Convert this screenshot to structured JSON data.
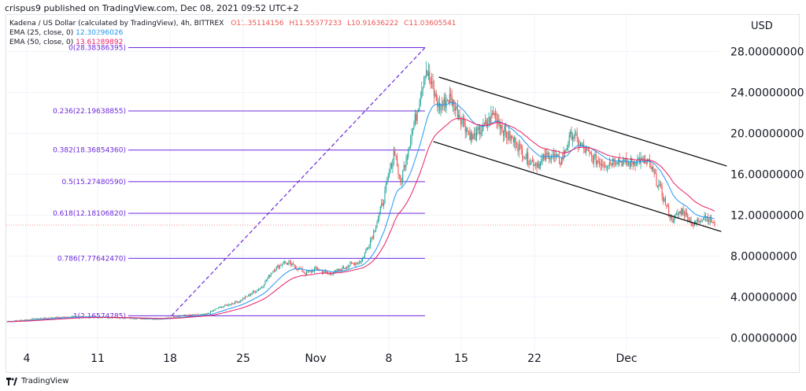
{
  "publisher": "crispus9 published on TradingView.com, Dec 08, 2021 09:52 UTC+2",
  "legend": {
    "symbol": "Kadena / US Dollar (calculated by TradingView), 4h, BITTREX",
    "open": "O11.35114156",
    "high": "H11.55677233",
    "low": "L10.91636222",
    "close": "C11.03605541",
    "ema25_label": "EMA (25, close, 0)",
    "ema25_value": "12.30296026",
    "ema50_label": "EMA (50, close, 0)",
    "ema50_value": "13.61289892"
  },
  "currency": "USD",
  "footer_brand": "TradingView",
  "colors": {
    "up": "#26a69a",
    "down": "#ef5350",
    "ema25": "#2196f3",
    "ema50": "#e91e63",
    "fib": "#6d28d9",
    "channel": "#000000"
  },
  "chart_data": {
    "type": "candlestick",
    "title": "Kadena / US Dollar",
    "timeframe": "4h",
    "exchange": "BITTREX",
    "x_ticks": [
      "4",
      "11",
      "18",
      "25",
      "Nov",
      "8",
      "15",
      "22",
      "Dec"
    ],
    "y_ticks": [
      "0.00000000",
      "4.00000000",
      "8.00000000",
      "12.00000000",
      "16.00000000",
      "20.00000000",
      "24.00000000",
      "28.00000000"
    ],
    "ylim": [
      -1.5,
      31.5
    ],
    "fibonacci": [
      {
        "label": "0(28.38386395)",
        "value": 28.38386395
      },
      {
        "label": "0.236(22.19638855)",
        "value": 22.19638855
      },
      {
        "label": "0.382(18.36854360)",
        "value": 18.3685436
      },
      {
        "label": "0.5(15.27480590)",
        "value": 15.2748059
      },
      {
        "label": "0.618(12.18106820)",
        "value": 12.1810682
      },
      {
        "label": "0.786(7.77642470)",
        "value": 7.7764247
      },
      {
        "label": "1(2.16574785)",
        "value": 2.16574785
      }
    ],
    "price_path": [
      [
        0,
        1.6
      ],
      [
        3,
        1.9
      ],
      [
        6,
        2.1
      ],
      [
        9,
        2.0
      ],
      [
        12,
        1.9
      ],
      [
        14,
        1.85
      ],
      [
        16,
        2.2
      ],
      [
        18,
        2.3
      ],
      [
        19,
        2.9
      ],
      [
        21,
        3.6
      ],
      [
        23,
        5.0
      ],
      [
        24,
        6.6
      ],
      [
        25,
        7.4
      ],
      [
        26,
        7.0
      ],
      [
        27,
        6.3
      ],
      [
        28,
        6.8
      ],
      [
        29,
        6.2
      ],
      [
        30,
        6.6
      ],
      [
        31,
        7.2
      ],
      [
        32,
        7.5
      ],
      [
        33,
        10.0
      ],
      [
        34,
        13.5
      ],
      [
        35,
        18.5
      ],
      [
        35.5,
        15.0
      ],
      [
        36,
        17.5
      ],
      [
        37,
        22.0
      ],
      [
        37.8,
        26.5
      ],
      [
        38.2,
        25.0
      ],
      [
        39,
        22.5
      ],
      [
        40,
        23.5
      ],
      [
        41,
        21.5
      ],
      [
        42,
        19.5
      ],
      [
        43,
        20.5
      ],
      [
        44,
        22.0
      ],
      [
        45,
        20.0
      ],
      [
        46,
        19.0
      ],
      [
        47,
        17.5
      ],
      [
        48,
        17.0
      ],
      [
        49,
        18.0
      ],
      [
        50,
        17.2
      ],
      [
        51,
        20.0
      ],
      [
        52,
        18.5
      ],
      [
        53,
        17.5
      ],
      [
        54,
        17.0
      ],
      [
        55,
        17.5
      ],
      [
        56,
        17.0
      ],
      [
        57,
        17.4
      ],
      [
        58,
        17.0
      ],
      [
        59,
        14.5
      ],
      [
        60,
        11.5
      ],
      [
        61,
        12.5
      ],
      [
        62,
        11.0
      ],
      [
        63,
        12.0
      ],
      [
        64,
        11.04
      ]
    ],
    "channel": {
      "upper": [
        [
          39,
          25.5
        ],
        [
          65,
          16.8
        ]
      ],
      "lower": [
        [
          38.5,
          19.2
        ],
        [
          64.5,
          10.4
        ]
      ]
    },
    "current_price": 11.036
  }
}
